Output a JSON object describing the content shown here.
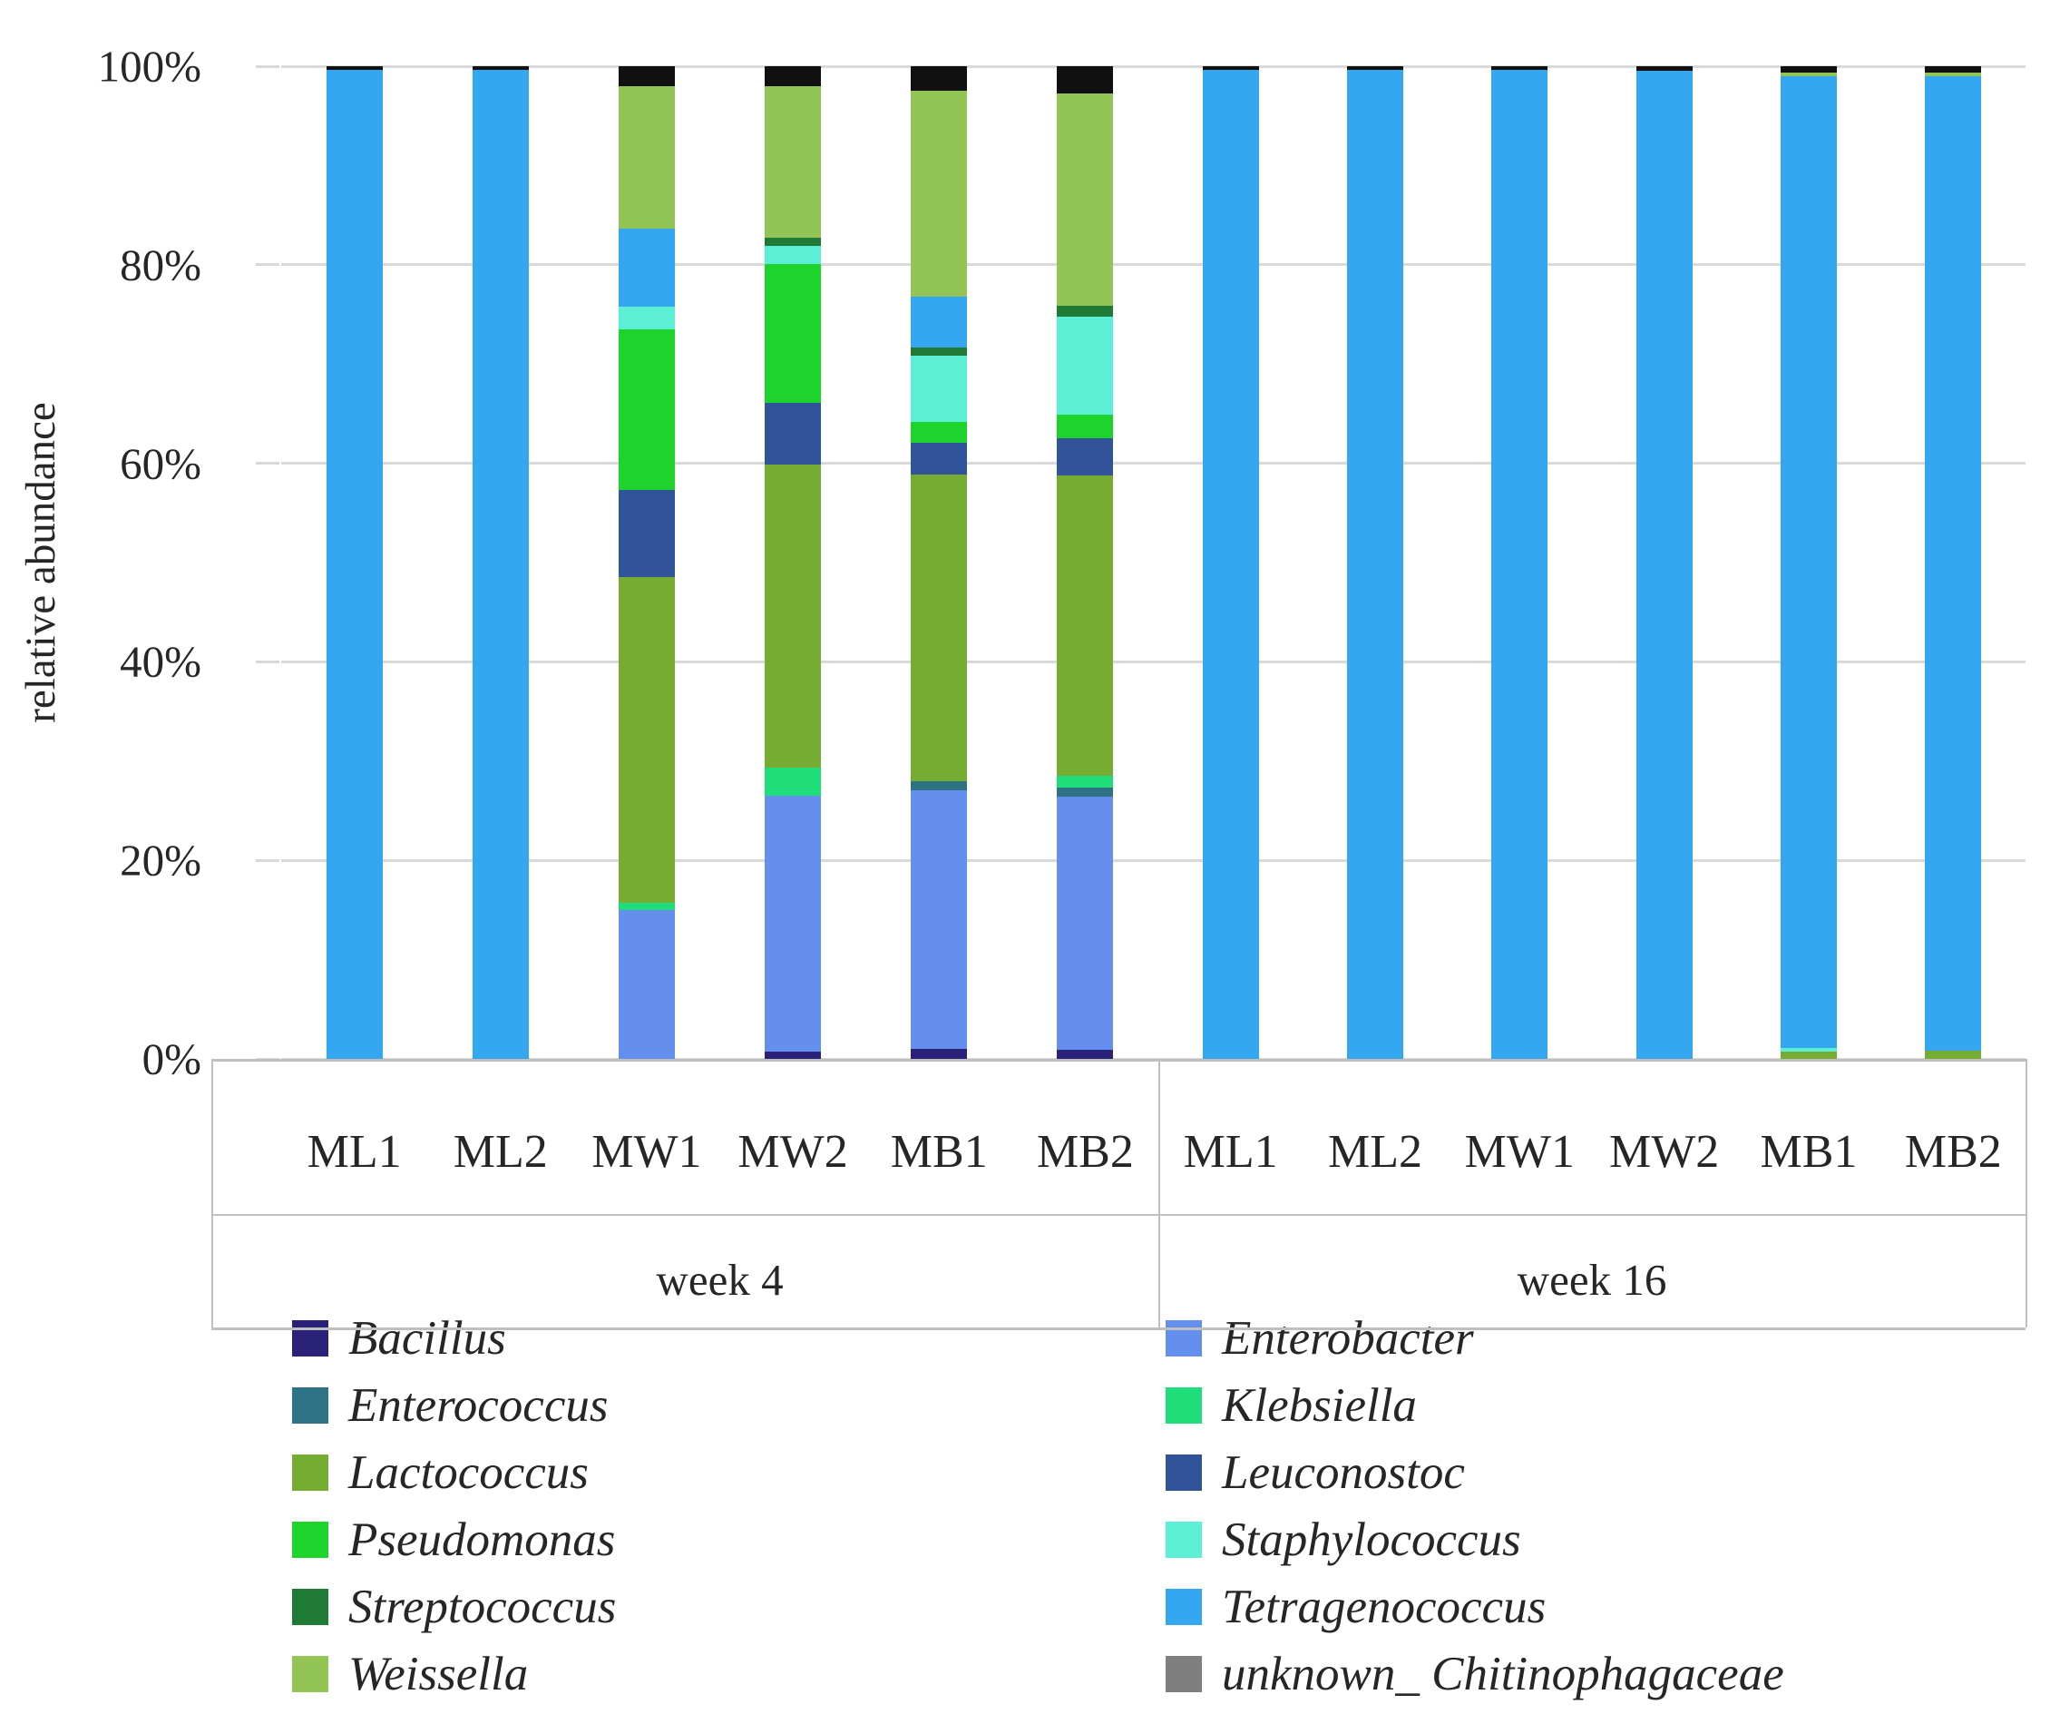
{
  "figure": {
    "ylabel": "relative abundance",
    "yticks": [
      "100%",
      "80%",
      "60%",
      "40%",
      "20%",
      "0%"
    ]
  },
  "chart_data": {
    "type": "bar",
    "subtype": "stacked-percent-bar",
    "title": "",
    "xlabel": "",
    "ylabel": "relative abundance",
    "ylim": [
      0,
      100
    ],
    "ytick_labels": [
      "100%",
      "80%",
      "60%",
      "40%",
      "20%",
      "0%"
    ],
    "grid": true,
    "stack_order_bottom_to_top": [
      "Bacillus",
      "Enterobacter",
      "Enterococcus",
      "Klebsiella",
      "Lactococcus",
      "Leuconostoc",
      "Pseudomonas",
      "Staphylococcus",
      "Streptococcus",
      "Tetragenococcus",
      "Weissella",
      "unknown_Chitinophagaceae"
    ],
    "groups": [
      {
        "label": "week 4",
        "bars": [
          {
            "label": "ML1",
            "segments": {
              "Tetragenococcus": 99.6,
              "unknown_Chitinophagaceae": 0.4
            }
          },
          {
            "label": "ML2",
            "segments": {
              "Tetragenococcus": 99.6,
              "unknown_Chitinophagaceae": 0.4
            }
          },
          {
            "label": "MW1",
            "segments": {
              "Enterobacter": 15.0,
              "Klebsiella": 0.7,
              "Lactococcus": 32.8,
              "Leuconostoc": 8.8,
              "Pseudomonas": 16.2,
              "Staphylococcus": 2.3,
              "Tetragenococcus": 7.8,
              "Weissella": 14.4,
              "unknown_Chitinophagaceae": 2.0
            }
          },
          {
            "label": "MW2",
            "segments": {
              "Bacillus": 0.7,
              "Enterobacter": 25.8,
              "Klebsiella": 2.8,
              "Lactococcus": 30.6,
              "Leuconostoc": 6.2,
              "Pseudomonas": 14.0,
              "Staphylococcus": 1.8,
              "Streptococcus": 0.8,
              "Weissella": 15.3,
              "unknown_Chitinophagaceae": 2.0
            }
          },
          {
            "label": "MB1",
            "segments": {
              "Bacillus": 1.0,
              "Enterobacter": 26.1,
              "Enterococcus": 0.9,
              "Lactococcus": 30.9,
              "Leuconostoc": 3.2,
              "Pseudomonas": 2.1,
              "Staphylococcus": 6.6,
              "Streptococcus": 0.9,
              "Tetragenococcus": 5.1,
              "Weissella": 20.7,
              "unknown_Chitinophagaceae": 2.5
            }
          },
          {
            "label": "MB2",
            "segments": {
              "Bacillus": 0.9,
              "Enterobacter": 25.5,
              "Enterococcus": 0.9,
              "Klebsiella": 1.2,
              "Lactococcus": 30.3,
              "Leuconostoc": 3.7,
              "Pseudomonas": 2.4,
              "Staphylococcus": 9.9,
              "Streptococcus": 1.1,
              "Weissella": 21.4,
              "unknown_Chitinophagaceae": 2.7
            }
          }
        ]
      },
      {
        "label": "week 16",
        "bars": [
          {
            "label": "ML1",
            "segments": {
              "Tetragenococcus": 99.6,
              "unknown_Chitinophagaceae": 0.4
            }
          },
          {
            "label": "ML2",
            "segments": {
              "Tetragenococcus": 99.6,
              "unknown_Chitinophagaceae": 0.4
            }
          },
          {
            "label": "MW1",
            "segments": {
              "Tetragenococcus": 99.6,
              "unknown_Chitinophagaceae": 0.4
            }
          },
          {
            "label": "MW2",
            "segments": {
              "Tetragenococcus": 99.5,
              "unknown_Chitinophagaceae": 0.5
            }
          },
          {
            "label": "MB1",
            "segments": {
              "Lactococcus": 0.7,
              "Staphylococcus": 0.4,
              "Tetragenococcus": 97.9,
              "Weissella": 0.4,
              "unknown_Chitinophagaceae": 0.6
            }
          },
          {
            "label": "MB2",
            "segments": {
              "Lactococcus": 0.8,
              "Tetragenococcus": 98.2,
              "Weissella": 0.4,
              "unknown_Chitinophagaceae": 0.6
            }
          }
        ]
      }
    ],
    "legend_position": "bottom-two-columns",
    "legend_columns": [
      [
        "Bacillus",
        "Enterococcus",
        "Lactococcus",
        "Pseudomonas",
        "Streptococcus",
        "Weissella"
      ],
      [
        "Enterobacter",
        "Klebsiella",
        "Leuconostoc",
        "Staphylococcus",
        "Tetragenococcus",
        "unknown_ Chitinophagaceae"
      ]
    ]
  },
  "colors": {
    "Bacillus": "#2a2178",
    "Enterobacter": "#648fef",
    "Enterococcus": "#2e7286",
    "Klebsiella": "#1fde79",
    "Lactococcus": "#76ac32",
    "Leuconostoc": "#31539a",
    "Pseudomonas": "#1ed32b",
    "Staphylococcus": "#5bf0d5",
    "Streptococcus": "#1e7a34",
    "Tetragenococcus": "#35a7f0",
    "Weissella": "#93c556",
    "unknown_Chitinophagaceae": "#7f7f7f",
    "segment_override_unknown_Chitinophagaceae": "#101010",
    "gridline": "#d9d9d9",
    "axis_box": "#bfbfbf",
    "text": "#262626"
  },
  "legend_display_labels": {
    "Bacillus": "Bacillus",
    "Enterococcus": "Enterococcus",
    "Lactococcus": "Lactococcus",
    "Pseudomonas": "Pseudomonas",
    "Streptococcus": "Streptococcus",
    "Weissella": "Weissella",
    "Enterobacter": "Enterobacter",
    "Klebsiella": "Klebsiella",
    "Leuconostoc": "Leuconostoc",
    "Staphylococcus": "Staphylococcus",
    "Tetragenococcus": "Tetragenococcus",
    "unknown_ Chitinophagaceae": "unknown_ Chitinophagaceae"
  }
}
